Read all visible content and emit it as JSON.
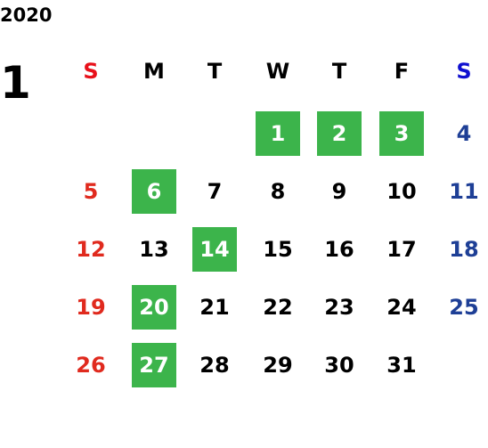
{
  "year": "2020",
  "month": "1",
  "weekdays": [
    "S",
    "M",
    "T",
    "W",
    "T",
    "F",
    "S"
  ],
  "weekday_colors": [
    "#e8101a",
    "#000000",
    "#000000",
    "#000000",
    "#000000",
    "#000000",
    "#1010d0"
  ],
  "day_colors": [
    "#e02a1e",
    "#000000",
    "#000000",
    "#000000",
    "#000000",
    "#000000",
    "#1e3f96"
  ],
  "highlight_color": "#3cb44b",
  "highlight_text_color": "#ffffff",
  "weeks": [
    [
      null,
      null,
      null,
      {
        "day": 1,
        "highlight": true
      },
      {
        "day": 2,
        "highlight": true
      },
      {
        "day": 3,
        "highlight": true
      },
      {
        "day": 4
      }
    ],
    [
      {
        "day": 5
      },
      {
        "day": 6,
        "highlight": true
      },
      {
        "day": 7
      },
      {
        "day": 8
      },
      {
        "day": 9
      },
      {
        "day": 10
      },
      {
        "day": 11
      }
    ],
    [
      {
        "day": 12
      },
      {
        "day": 13
      },
      {
        "day": 14,
        "highlight": true
      },
      {
        "day": 15
      },
      {
        "day": 16
      },
      {
        "day": 17
      },
      {
        "day": 18
      }
    ],
    [
      {
        "day": 19
      },
      {
        "day": 20,
        "highlight": true
      },
      {
        "day": 21
      },
      {
        "day": 22
      },
      {
        "day": 23
      },
      {
        "day": 24
      },
      {
        "day": 25
      }
    ],
    [
      {
        "day": 26
      },
      {
        "day": 27,
        "highlight": true
      },
      {
        "day": 28
      },
      {
        "day": 29
      },
      {
        "day": 30
      },
      {
        "day": 31
      },
      null
    ]
  ]
}
